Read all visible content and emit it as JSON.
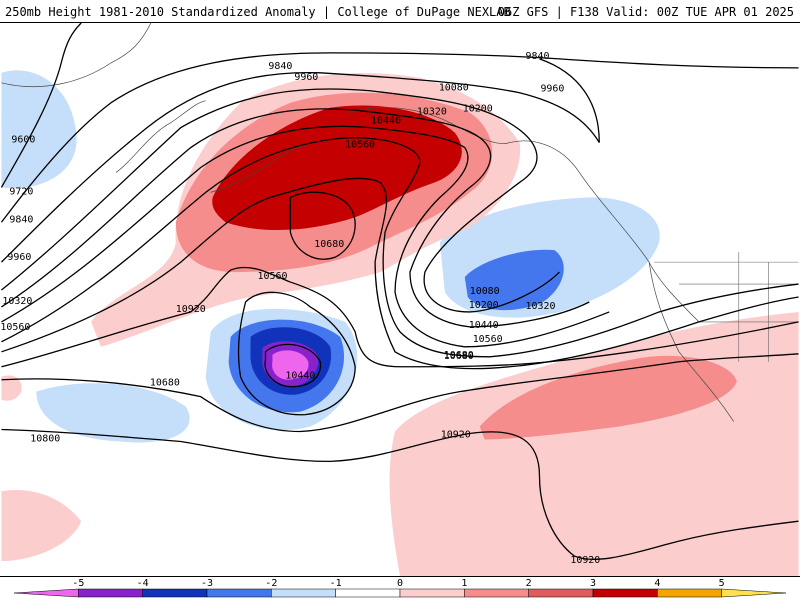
{
  "header": {
    "left": "250mb Height 1981-2010 Standardized Anomaly | College of DuPage NEXLAB",
    "right": "06Z GFS | F138 Valid: 00Z TUE APR 01 2025"
  },
  "colors": {
    "neg5": "#ee66ee",
    "neg4": "#8822cc",
    "neg3": "#1133bb",
    "neg2": "#4477ee",
    "neg1": "#c5defa",
    "zero": "#ffffff",
    "pos1": "#fbcdcd",
    "pos2": "#f58d8d",
    "pos3": "#e05c5c",
    "pos4": "#c40000",
    "pos5": "#f5a500",
    "pos6": "#ffe050"
  },
  "contour_labels": [
    "9600",
    "9720",
    "9840",
    "9960",
    "10320",
    "10560",
    "10680",
    "10800",
    "10920",
    "9840",
    "9960",
    "10440",
    "10560",
    "10320",
    "10680",
    "10080",
    "10200",
    "9840",
    "9960",
    "10080",
    "10200",
    "10320",
    "10440",
    "10560",
    "10680",
    "10440",
    "10560",
    "10680",
    "10920",
    "10920"
  ],
  "legend": {
    "ticks": [
      "-5",
      "-4",
      "-3",
      "-2",
      "-1",
      "0",
      "1",
      "2",
      "3",
      "4",
      "5"
    ]
  }
}
